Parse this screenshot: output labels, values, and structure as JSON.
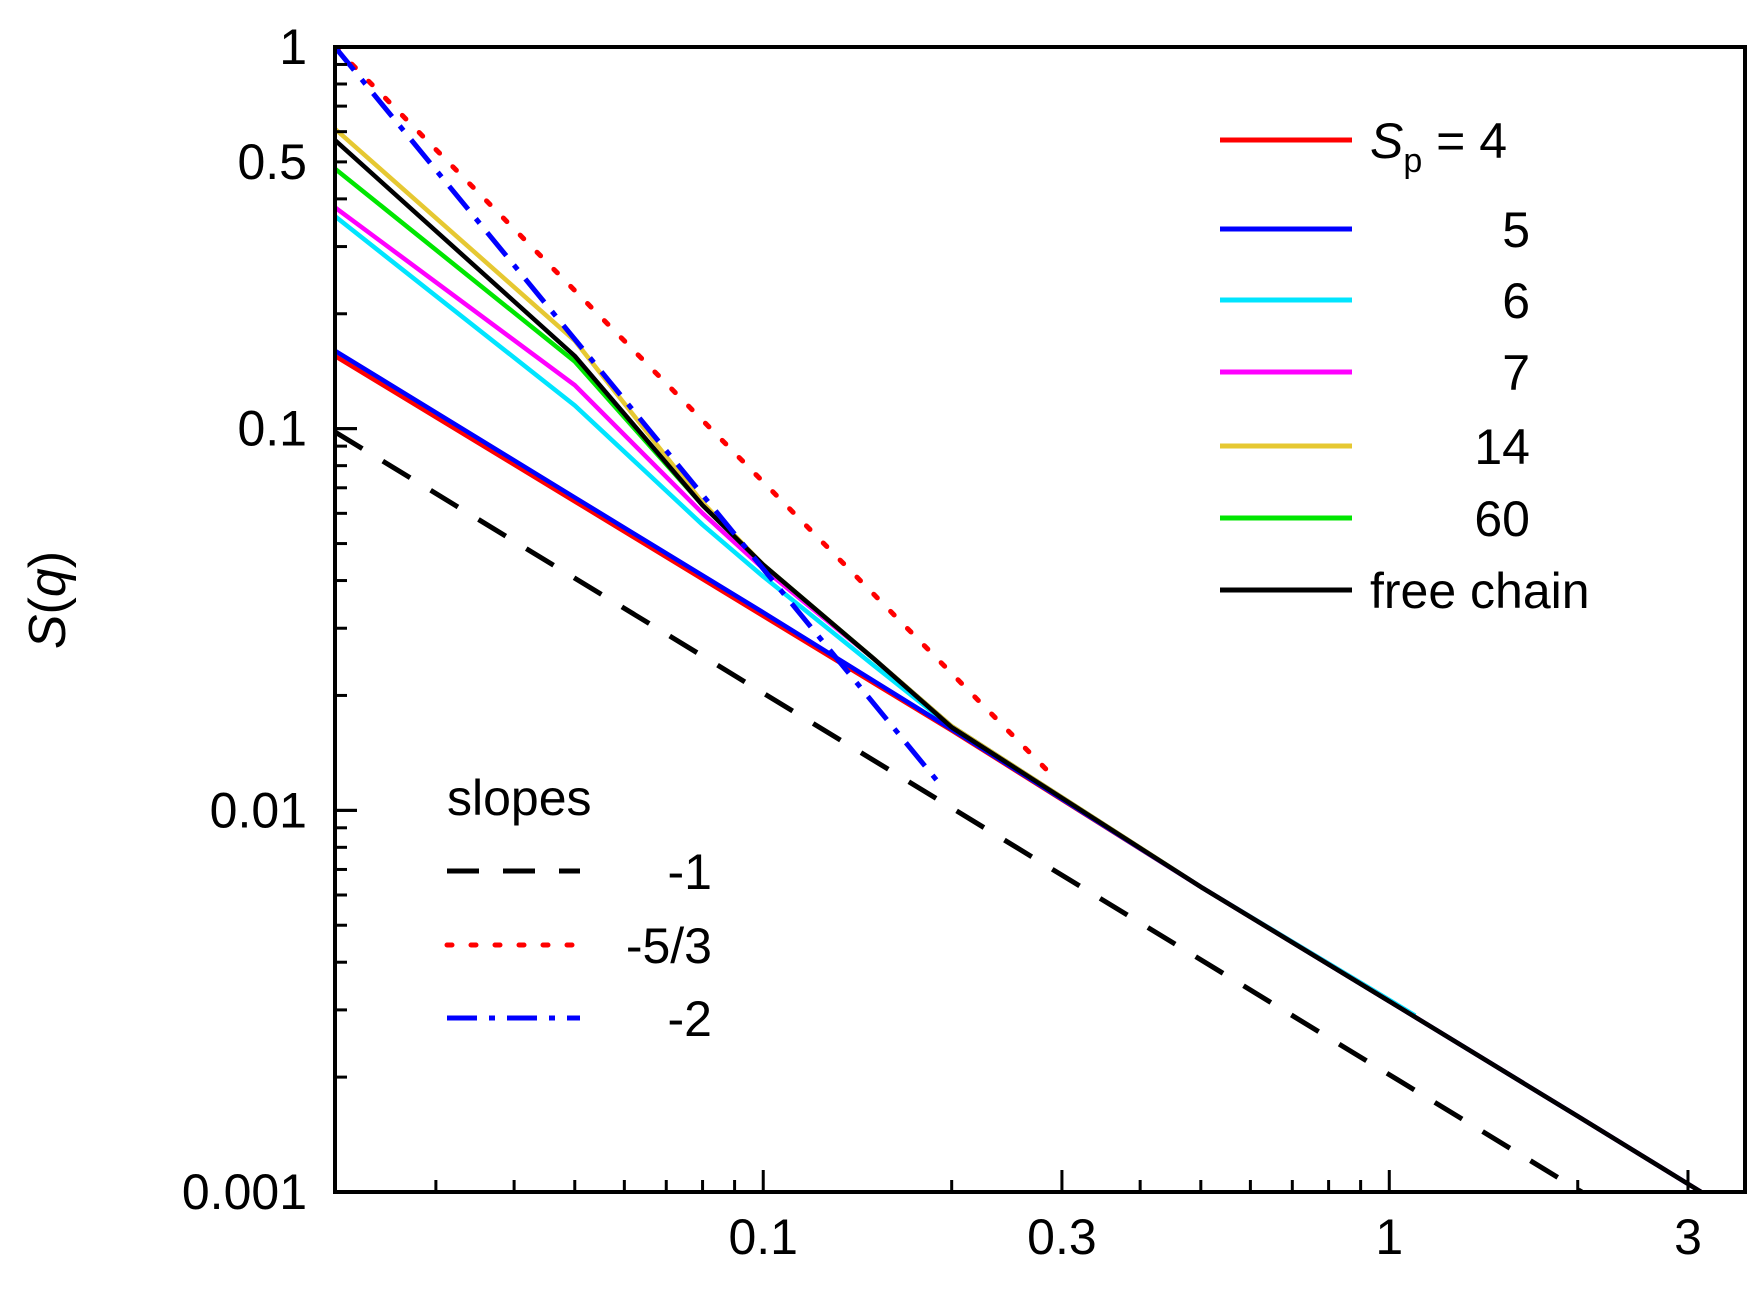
{
  "chart_data": {
    "type": "line",
    "title": "",
    "xlabel": "",
    "ylabel": {
      "main": "S",
      "var": "q"
    },
    "xscale": "log",
    "yscale": "log",
    "xlim": [
      0.0207,
      3.7
    ],
    "ylim": [
      0.001,
      1
    ],
    "x_ticks": [
      {
        "value": 0.1,
        "label": "0.1"
      },
      {
        "value": 0.3,
        "label": "0.3"
      },
      {
        "value": 1,
        "label": "1"
      },
      {
        "value": 3,
        "label": "3"
      }
    ],
    "y_ticks": [
      {
        "value": 1,
        "label": "1"
      },
      {
        "value": 0.5,
        "label": "0.5"
      },
      {
        "value": 0.1,
        "label": "0.1"
      },
      {
        "value": 0.01,
        "label": "0.01"
      },
      {
        "value": 0.001,
        "label": "0.001"
      }
    ],
    "series": [
      {
        "id": "sp4",
        "name": "4",
        "color": "#ff0000",
        "style": "solid",
        "points": [
          [
            0.0207,
            0.155
          ],
          [
            0.05,
            0.0645
          ],
          [
            0.1,
            0.0323
          ],
          [
            0.2,
            0.0162
          ],
          [
            0.5,
            0.0063
          ],
          [
            1,
            0.00316
          ],
          [
            2,
            0.00158
          ],
          [
            3.15,
            0.001
          ]
        ]
      },
      {
        "id": "sp5",
        "name": "5",
        "color": "#0000ff",
        "style": "solid",
        "points": [
          [
            0.0207,
            0.16
          ],
          [
            0.05,
            0.066
          ],
          [
            0.1,
            0.033
          ],
          [
            0.2,
            0.0163
          ],
          [
            0.5,
            0.0063
          ],
          [
            1,
            0.00316
          ],
          [
            2,
            0.00158
          ],
          [
            3.15,
            0.001
          ]
        ]
      },
      {
        "id": "sp6",
        "name": "6",
        "color": "#00e5ff",
        "style": "solid",
        "points": [
          [
            0.0207,
            0.36
          ],
          [
            0.05,
            0.115
          ],
          [
            0.08,
            0.056
          ],
          [
            0.1,
            0.041
          ],
          [
            0.15,
            0.024
          ],
          [
            0.2,
            0.0165
          ],
          [
            0.5,
            0.0063
          ],
          [
            1.1,
            0.0029
          ]
        ]
      },
      {
        "id": "sp7",
        "name": "7",
        "color": "#ff00ff",
        "style": "solid",
        "points": [
          [
            0.0207,
            0.38
          ],
          [
            0.05,
            0.13
          ],
          [
            0.08,
            0.06
          ],
          [
            0.1,
            0.043
          ],
          [
            0.15,
            0.025
          ],
          [
            0.2,
            0.0166
          ],
          [
            0.5,
            0.0063
          ],
          [
            1,
            0.00316
          ]
        ]
      },
      {
        "id": "sp14",
        "name": "14",
        "color": "#e6c832",
        "style": "solid",
        "points": [
          [
            0.0207,
            0.61
          ],
          [
            0.05,
            0.17
          ],
          [
            0.08,
            0.064
          ],
          [
            0.1,
            0.044
          ],
          [
            0.15,
            0.025
          ],
          [
            0.2,
            0.0166
          ],
          [
            0.5,
            0.0063
          ],
          [
            1,
            0.00316
          ]
        ]
      },
      {
        "id": "sp60",
        "name": "60",
        "color": "#00e600",
        "style": "solid",
        "points": [
          [
            0.0207,
            0.48
          ],
          [
            0.05,
            0.15
          ],
          [
            0.08,
            0.063
          ],
          [
            0.1,
            0.044
          ],
          [
            0.15,
            0.025
          ],
          [
            0.2,
            0.0166
          ],
          [
            0.5,
            0.0063
          ],
          [
            1,
            0.00316
          ]
        ]
      },
      {
        "id": "free",
        "name": "free chain",
        "color": "#000000",
        "style": "solid",
        "points": [
          [
            0.0207,
            0.57
          ],
          [
            0.05,
            0.155
          ],
          [
            0.08,
            0.063
          ],
          [
            0.1,
            0.044
          ],
          [
            0.15,
            0.025
          ],
          [
            0.2,
            0.0165
          ],
          [
            0.5,
            0.0063
          ],
          [
            1,
            0.00316
          ],
          [
            2,
            0.00158
          ],
          [
            3.15,
            0.001
          ]
        ]
      },
      {
        "id": "slope1",
        "name": "-1",
        "color": "#000000",
        "style": "dashed",
        "points": [
          [
            0.0207,
            0.098
          ],
          [
            2.03,
            0.001
          ]
        ]
      },
      {
        "id": "slope53",
        "name": "-5/3",
        "color": "#ff0000",
        "style": "dotted",
        "points": [
          [
            0.0207,
            1.0
          ],
          [
            0.29,
            0.0123
          ]
        ]
      },
      {
        "id": "slope2",
        "name": "-2",
        "color": "#0000ff",
        "style": "dashdot",
        "points": [
          [
            0.0207,
            1.0
          ],
          [
            0.19,
            0.0119
          ]
        ]
      }
    ],
    "legend_main": {
      "position": "top-right",
      "prefix_main": "S",
      "prefix_sub": "p",
      "prefix_eq": " = ",
      "entries": [
        {
          "series": "sp4",
          "label": "4"
        },
        {
          "series": "sp5",
          "label": "5"
        },
        {
          "series": "sp6",
          "label": "6"
        },
        {
          "series": "sp7",
          "label": "7"
        },
        {
          "series": "sp14",
          "label": "14"
        },
        {
          "series": "sp60",
          "label": "60"
        },
        {
          "series": "free",
          "label": "free chain"
        }
      ]
    },
    "legend_slopes": {
      "position": "bottom-left",
      "title": "slopes",
      "entries": [
        {
          "series": "slope1",
          "label": "-1"
        },
        {
          "series": "slope53",
          "label": "-5/3"
        },
        {
          "series": "slope2",
          "label": "-2"
        }
      ]
    }
  }
}
